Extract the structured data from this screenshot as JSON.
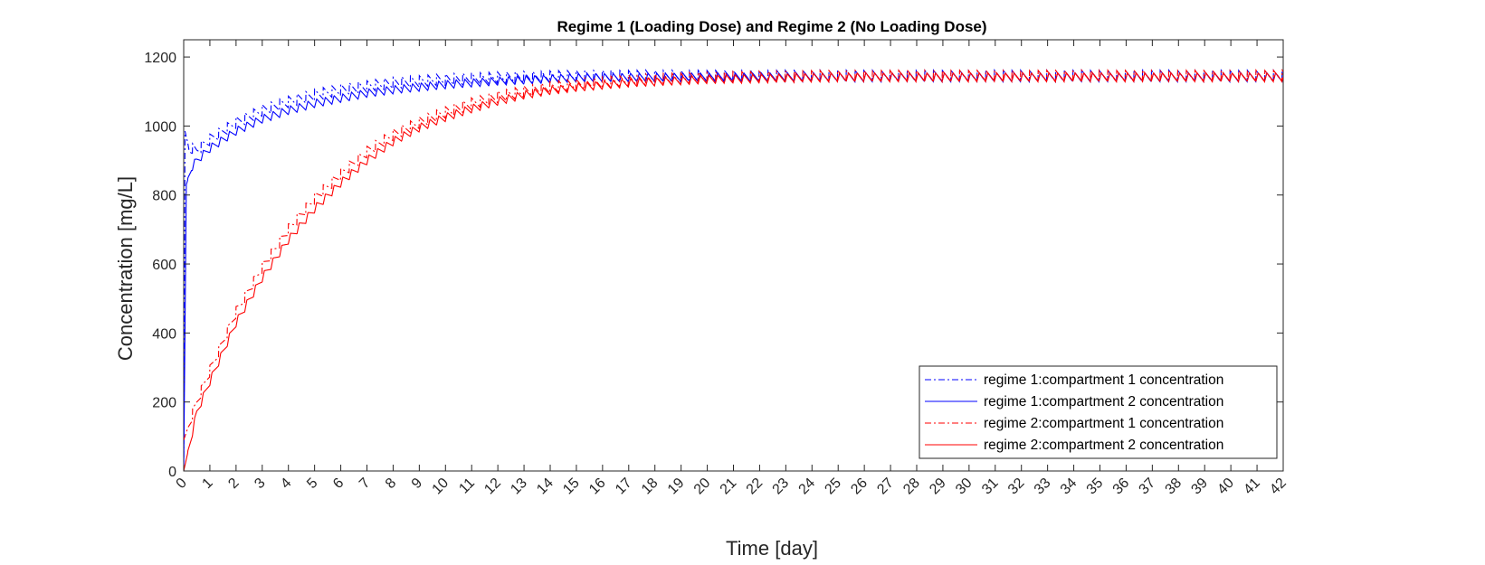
{
  "chart_data": {
    "type": "line",
    "title": "Regime 1 (Loading Dose) and Regime 2 (No Loading Dose)",
    "xlabel": "Time [day]",
    "ylabel": "Concentration [mg/L]",
    "xlim": [
      0,
      42
    ],
    "ylim": [
      0,
      1250
    ],
    "x_ticks": [
      0,
      1,
      2,
      3,
      4,
      5,
      6,
      7,
      8,
      9,
      10,
      11,
      12,
      13,
      14,
      15,
      16,
      17,
      18,
      19,
      20,
      21,
      22,
      23,
      24,
      25,
      26,
      27,
      28,
      29,
      30,
      31,
      32,
      33,
      34,
      35,
      36,
      37,
      38,
      39,
      40,
      41,
      42
    ],
    "y_ticks": [
      0,
      200,
      400,
      600,
      800,
      1000,
      1200
    ],
    "grid": false,
    "legend_position": "bottom-right",
    "dose_interval_days": 0.333,
    "series": [
      {
        "name": "regime 1:compartment 1 concentration",
        "color": "#0000FF",
        "line_style": "dash-dot",
        "x": [
          0,
          0.05,
          0.2,
          0.5,
          1,
          2,
          3,
          4,
          5,
          6,
          7,
          8,
          10,
          12,
          15,
          20,
          25,
          30,
          35,
          42
        ],
        "y": [
          0,
          985,
          935,
          930,
          960,
          1010,
          1045,
          1070,
          1090,
          1105,
          1115,
          1125,
          1135,
          1140,
          1145,
          1145,
          1145,
          1145,
          1145,
          1145
        ]
      },
      {
        "name": "regime 1:compartment 2 concentration",
        "color": "#0000FF",
        "line_style": "solid",
        "x": [
          0,
          0.1,
          0.3,
          0.5,
          1,
          2,
          3,
          4,
          5,
          6,
          7,
          8,
          10,
          12,
          15,
          20,
          25,
          30,
          35,
          42
        ],
        "y": [
          0,
          830,
          880,
          900,
          935,
          985,
          1020,
          1045,
          1065,
          1080,
          1095,
          1105,
          1120,
          1130,
          1140,
          1142,
          1142,
          1142,
          1142,
          1142
        ]
      },
      {
        "name": "regime 2:compartment 1 concentration",
        "color": "#FF0000",
        "line_style": "dash-dot",
        "x": [
          0,
          0.5,
          1,
          2,
          3,
          4,
          5,
          6,
          7,
          8,
          9,
          10,
          11,
          12,
          13,
          14,
          15,
          17,
          20,
          25,
          30,
          35,
          42
        ],
        "y": [
          90,
          200,
          290,
          460,
          590,
          700,
          790,
          860,
          925,
          975,
          1010,
          1040,
          1065,
          1085,
          1100,
          1112,
          1120,
          1132,
          1140,
          1145,
          1145,
          1145,
          1145
        ]
      },
      {
        "name": "regime 2:compartment 2 concentration",
        "color": "#FF0000",
        "line_style": "solid",
        "x": [
          0,
          0.5,
          1,
          2,
          3,
          4,
          5,
          6,
          7,
          8,
          9,
          10,
          11,
          12,
          13,
          14,
          15,
          17,
          20,
          25,
          30,
          35,
          42
        ],
        "y": [
          0,
          170,
          260,
          430,
          560,
          670,
          760,
          835,
          900,
          955,
          995,
          1025,
          1050,
          1072,
          1090,
          1103,
          1112,
          1125,
          1135,
          1142,
          1142,
          1142,
          1142
        ]
      }
    ]
  }
}
